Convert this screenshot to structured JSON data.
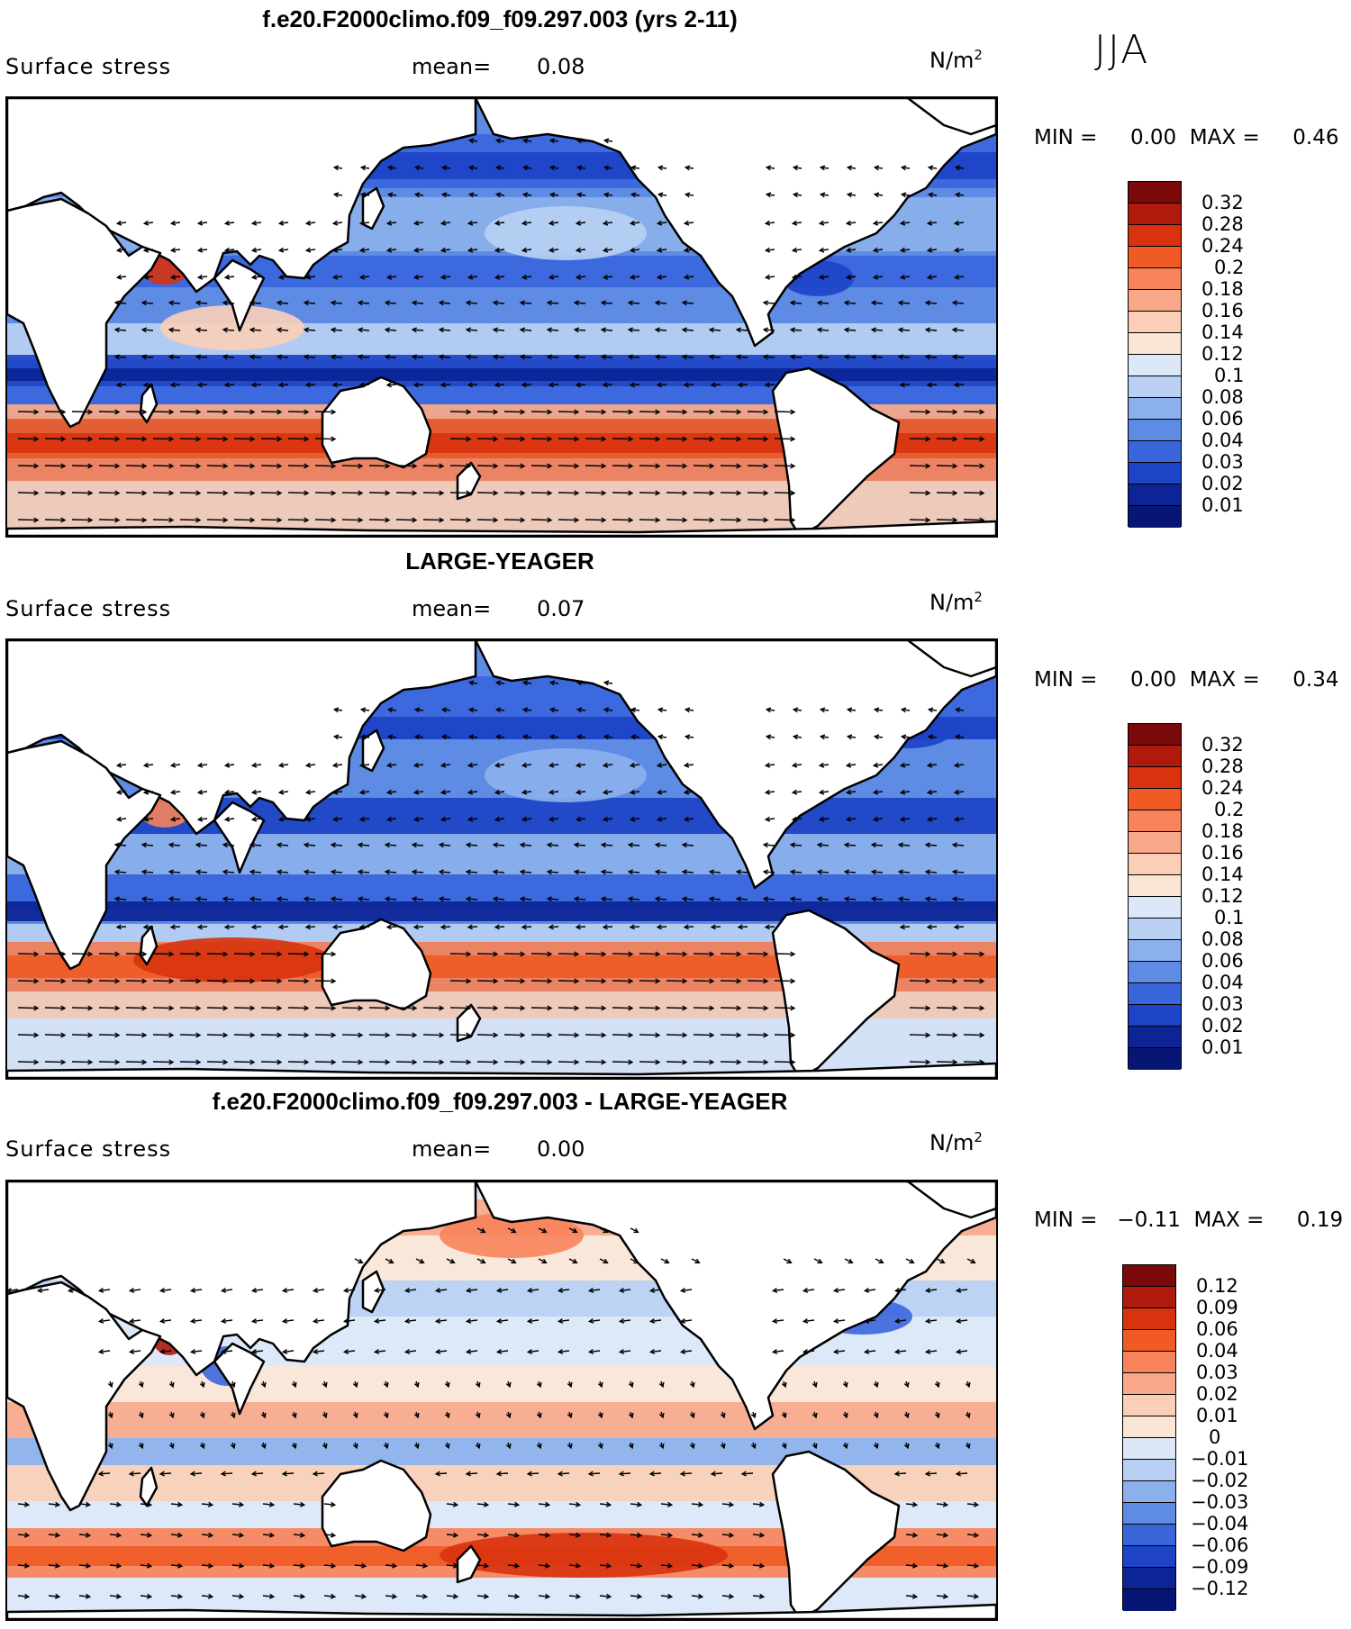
{
  "season": "JJA",
  "panels": [
    {
      "title": "f.e20.F2000climo.f09_f09.297.003 (yrs 2-11)",
      "variable": "Surface stress",
      "mean_label": "mean=",
      "mean_value": "0.08",
      "units": "N/m",
      "units_exp": "2",
      "minmax_text": "MIN =     0.00  MAX =     0.46",
      "colorbar_labels": [
        "0.32",
        "0.28",
        "0.24",
        "0.2",
        "0.18",
        "0.16",
        "0.14",
        "0.12",
        "0.1",
        "0.08",
        "0.06",
        "0.04",
        "0.03",
        "0.02",
        "0.01"
      ]
    },
    {
      "title": "LARGE-YEAGER",
      "variable": "Surface stress",
      "mean_label": "mean=",
      "mean_value": "0.07",
      "units": "N/m",
      "units_exp": "2",
      "minmax_text": "MIN =     0.00  MAX =     0.34",
      "colorbar_labels": [
        "0.32",
        "0.28",
        "0.24",
        "0.2",
        "0.18",
        "0.16",
        "0.14",
        "0.12",
        "0.1",
        "0.08",
        "0.06",
        "0.04",
        "0.03",
        "0.02",
        "0.01"
      ]
    },
    {
      "title": "f.e20.F2000climo.f09_f09.297.003 - LARGE-YEAGER",
      "variable": "Surface stress",
      "mean_label": "mean=",
      "mean_value": "0.00",
      "units": "N/m",
      "units_exp": "2",
      "minmax_text": "MIN =   −0.11  MAX =     0.19",
      "colorbar_labels": [
        "0.12",
        "0.09",
        "0.06",
        "0.04",
        "0.03",
        "0.02",
        "0.01",
        "0",
        "−0.01",
        "−0.02",
        "−0.03",
        "−0.04",
        "−0.06",
        "−0.09",
        "−0.12"
      ]
    }
  ],
  "colors": {
    "abs_scale": [
      "#7a0a0a",
      "#b01a0c",
      "#d8330e",
      "#ef5a25",
      "#f7835a",
      "#f9a889",
      "#fbcfb7",
      "#fbe6d6",
      "#dce8f7",
      "#b9d0f3",
      "#8cb0ec",
      "#5e8be3",
      "#3a66dc",
      "#1d43c6",
      "#0c2496",
      "#071674"
    ],
    "diff_scale": [
      "#7a0a0a",
      "#b01a0c",
      "#d8330e",
      "#ef5a25",
      "#f7835a",
      "#f9a889",
      "#fbcfb7",
      "#fbe6d6",
      "#dce8f7",
      "#b9d0f3",
      "#8cb0ec",
      "#5e8be3",
      "#3a66dc",
      "#1d43c6",
      "#0c2496",
      "#071674"
    ],
    "land": "#ffffff",
    "coast": "#000000"
  },
  "chart_data": [
    {
      "type": "heatmap",
      "title": "f.e20.F2000climo.f09_f09.297.003 (yrs 2-11)",
      "field": "Surface stress (N/m2), JJA, with stress vectors",
      "mean": 0.08,
      "min": 0.0,
      "max": 0.46,
      "contour_levels": [
        0.01,
        0.02,
        0.03,
        0.04,
        0.06,
        0.08,
        0.1,
        0.12,
        0.14,
        0.16,
        0.18,
        0.2,
        0.24,
        0.28,
        0.32
      ]
    },
    {
      "type": "heatmap",
      "title": "LARGE-YEAGER",
      "field": "Surface stress (N/m2), JJA, with stress vectors",
      "mean": 0.07,
      "min": 0.0,
      "max": 0.34,
      "contour_levels": [
        0.01,
        0.02,
        0.03,
        0.04,
        0.06,
        0.08,
        0.1,
        0.12,
        0.14,
        0.16,
        0.18,
        0.2,
        0.24,
        0.28,
        0.32
      ]
    },
    {
      "type": "heatmap",
      "title": "f.e20.F2000climo.f09_f09.297.003 - LARGE-YEAGER",
      "field": "Surface stress difference (N/m2), JJA, with vector differences",
      "mean": 0.0,
      "min": -0.11,
      "max": 0.19,
      "contour_levels": [
        -0.12,
        -0.09,
        -0.06,
        -0.04,
        -0.03,
        -0.02,
        -0.01,
        0,
        0.01,
        0.02,
        0.03,
        0.04,
        0.06,
        0.09,
        0.12
      ]
    }
  ]
}
